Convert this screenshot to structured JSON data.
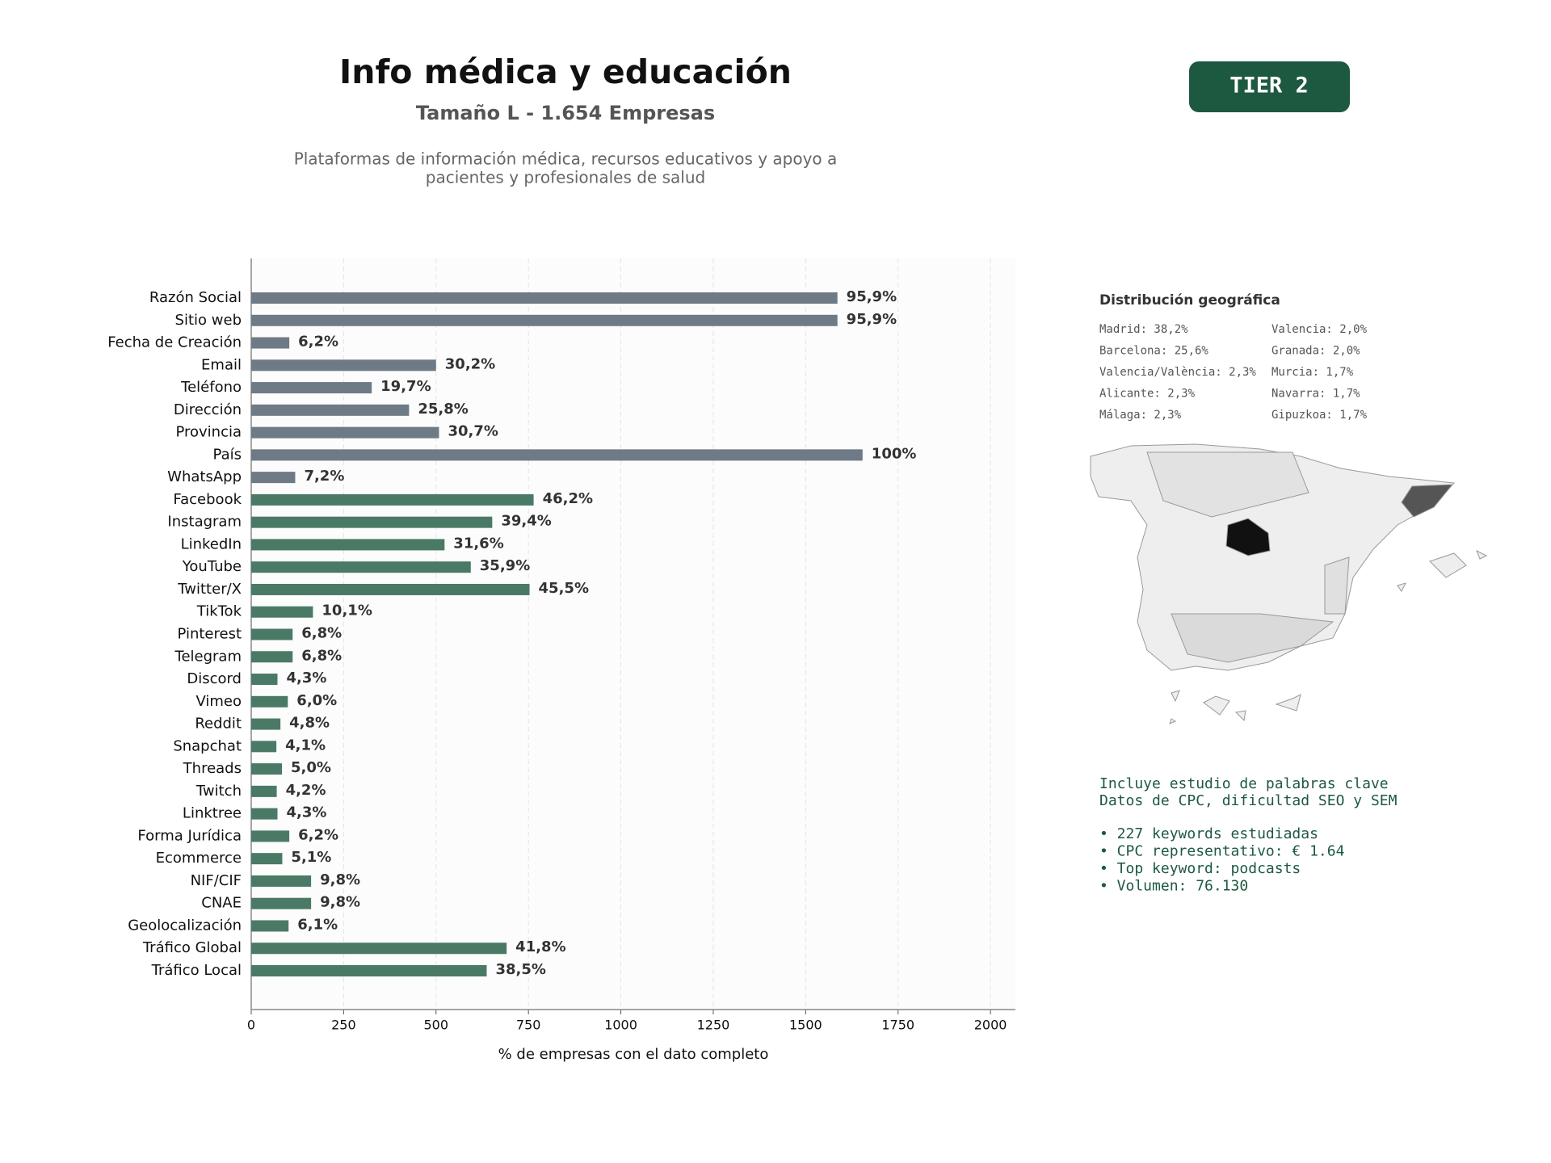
{
  "chart_data": {
    "type": "bar",
    "orientation": "horizontal",
    "title": "Info médica y educación",
    "subtitle": "Tamaño L - 1.654 Empresas",
    "description": [
      "Plataformas de información médica, recursos educativos y apoyo a",
      "pacientes y profesionales de salud"
    ],
    "badge": "TIER 2",
    "xlabel": "% de empresas con el dato completo",
    "categories": [
      "Razón Social",
      "Sitio web",
      "Fecha de Creación",
      "Email",
      "Teléfono",
      "Dirección",
      "Provincia",
      "País",
      "WhatsApp",
      "Facebook",
      "Instagram",
      "LinkedIn",
      "YouTube",
      "Twitter/X",
      "TikTok",
      "Pinterest",
      "Telegram",
      "Discord",
      "Vimeo",
      "Reddit",
      "Snapchat",
      "Threads",
      "Twitch",
      "Linktree",
      "Forma Jurídica",
      "Ecommerce",
      "NIF/CIF",
      "CNAE",
      "Geolocalización",
      "Tráfico Global",
      "Tráfico Local"
    ],
    "values": [
      1586,
      1586,
      103,
      500,
      326,
      427,
      508,
      1654,
      119,
      764,
      652,
      523,
      594,
      753,
      167,
      112,
      112,
      71,
      99,
      79,
      68,
      83,
      69,
      71,
      103,
      84,
      162,
      162,
      101,
      691,
      637
    ],
    "value_labels": [
      "95,9%",
      "95,9%",
      "6,2%",
      "30,2%",
      "19,7%",
      "25,8%",
      "30,7%",
      "100%",
      "7,2%",
      "46,2%",
      "39,4%",
      "31,6%",
      "35,9%",
      "45,5%",
      "10,1%",
      "6,8%",
      "6,8%",
      "4,3%",
      "6,0%",
      "4,8%",
      "4,1%",
      "5,0%",
      "4,2%",
      "4,3%",
      "6,2%",
      "5,1%",
      "9,8%",
      "9,8%",
      "6,1%",
      "41,8%",
      "38,5%"
    ],
    "colors": [
      "#6e7a85",
      "#6e7a85",
      "#6e7a85",
      "#6e7a85",
      "#6e7a85",
      "#6e7a85",
      "#6e7a85",
      "#6e7a85",
      "#6e7a85",
      "#4a7a66",
      "#4a7a66",
      "#4a7a66",
      "#4a7a66",
      "#4a7a66",
      "#4a7a66",
      "#4a7a66",
      "#4a7a66",
      "#4a7a66",
      "#4a7a66",
      "#4a7a66",
      "#4a7a66",
      "#4a7a66",
      "#4a7a66",
      "#4a7a66",
      "#4a7a66",
      "#4a7a66",
      "#4a7a66",
      "#4a7a66",
      "#4a7a66",
      "#4a7a66",
      "#4a7a66"
    ],
    "xlim": [
      0,
      2067.5
    ],
    "xticks": [
      0,
      250,
      500,
      750,
      1000,
      1250,
      1500,
      1750,
      2000
    ],
    "grid": true,
    "geo_title": "Distribución geográfica",
    "geo_items": [
      "Madrid: 38,2%",
      "Barcelona: 25,6%",
      "Valencia/València: 2,3%",
      "Alicante: 2,3%",
      "Málaga: 2,3%",
      "Valencia: 2,0%",
      "Granada: 2,0%",
      "Murcia: 1,7%",
      "Navarra: 1,7%",
      "Gipuzkoa: 1,7%"
    ],
    "keywords": [
      "Incluye estudio de palabras clave",
      "Datos de CPC, dificultad SEO y SEM"
    ],
    "keyword_bullets": [
      "• 227 keywords estudiadas",
      "• CPC representativo: € 1.64",
      "• Top keyword: podcasts",
      "• Volumen: 76.130"
    ]
  }
}
